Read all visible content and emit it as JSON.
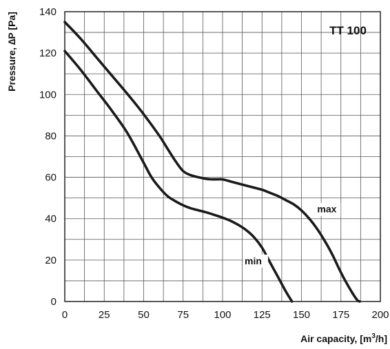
{
  "chart_data": {
    "type": "line",
    "title": "TT 100",
    "xlabel_main": "Air capacity, [m",
    "xlabel_sup": "3",
    "xlabel_tail": "/h]",
    "ylabel": "Pressure, ∆P [Pa]",
    "xlim": [
      0,
      200
    ],
    "ylim": [
      0,
      140
    ],
    "x_ticks": [
      0,
      25,
      50,
      75,
      100,
      125,
      150,
      175,
      200
    ],
    "y_ticks": [
      0,
      20,
      40,
      60,
      80,
      100,
      120,
      140
    ],
    "x_minor_step": 12.5,
    "y_minor_step": 10,
    "grid": true,
    "series": [
      {
        "name": "max",
        "color": "#1a1a1a",
        "x": [
          0,
          10,
          20,
          30,
          40,
          50,
          60,
          65,
          70,
          75,
          80,
          85,
          90,
          95,
          100,
          105,
          110,
          115,
          120,
          125,
          130,
          135,
          140,
          145,
          150,
          155,
          160,
          165,
          170,
          175,
          180,
          185,
          187
        ],
        "y": [
          135,
          127,
          118,
          109,
          100,
          90.5,
          80,
          74,
          68,
          63,
          61,
          60,
          59.2,
          59,
          59,
          58,
          57,
          56,
          55,
          54,
          52.5,
          51,
          49,
          47,
          44,
          40,
          35,
          29,
          22,
          14,
          7,
          1,
          0
        ]
      },
      {
        "name": "min",
        "color": "#1a1a1a",
        "x": [
          0,
          10,
          20,
          30,
          40,
          50,
          55,
          60,
          65,
          70,
          75,
          80,
          85,
          90,
          95,
          100,
          105,
          110,
          115,
          120,
          125,
          130,
          135,
          140,
          144
        ],
        "y": [
          121,
          112,
          102,
          92,
          81,
          67,
          60,
          55,
          51,
          48.5,
          46.5,
          45,
          44,
          43,
          41.8,
          40.5,
          39,
          37,
          34.5,
          31,
          26,
          19,
          12,
          5,
          0
        ]
      }
    ],
    "annotations": [
      {
        "text": "max",
        "x": 160,
        "y": 43
      },
      {
        "text": "min",
        "x": 114,
        "y": 18
      }
    ]
  }
}
